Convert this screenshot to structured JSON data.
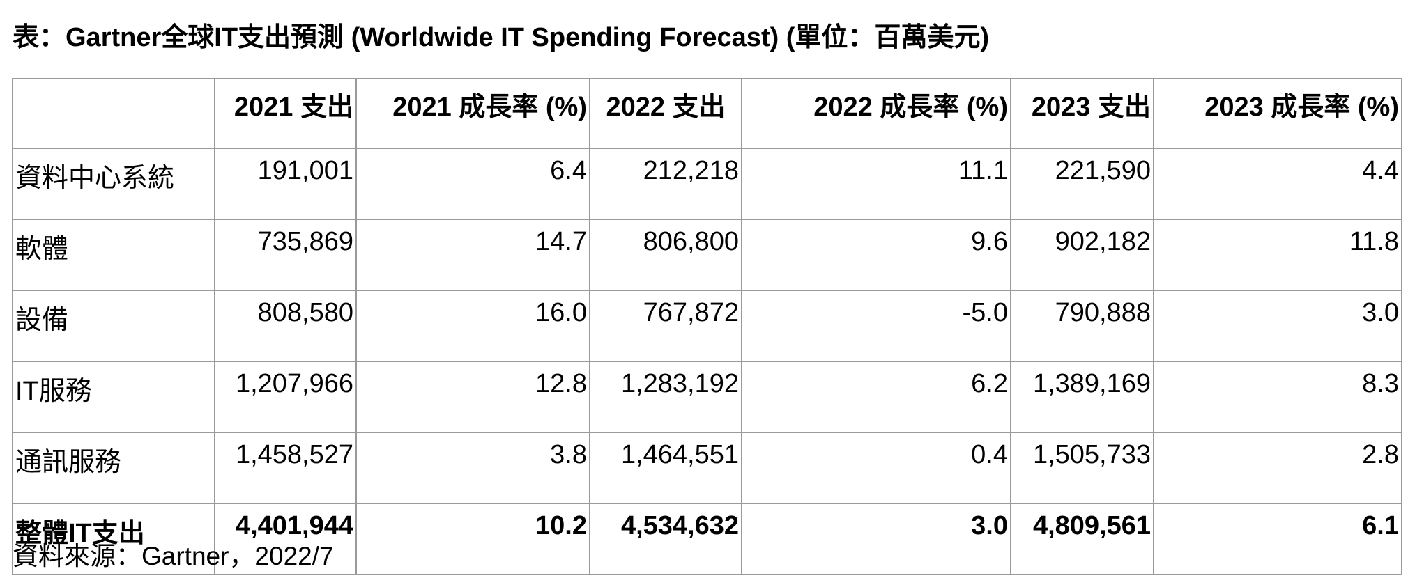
{
  "title": "表：Gartner全球IT支出預測 (Worldwide IT Spending Forecast) (單位：百萬美元)",
  "table": {
    "headers": [
      "",
      "2021 支出",
      "2021 成長率 (%)",
      "2022  支出",
      "2022 成長率 (%)",
      "2023 支出",
      "2023 成長率 (%)"
    ],
    "rows": [
      [
        "資料中心系統",
        "191,001",
        "6.4",
        "212,218",
        "11.1",
        "221,590",
        "4.4"
      ],
      [
        "軟體",
        "735,869",
        "14.7",
        "806,800",
        "9.6",
        "902,182",
        "11.8"
      ],
      [
        "設備",
        "808,580",
        "16.0",
        "767,872",
        "-5.0",
        "790,888",
        "3.0"
      ],
      [
        "IT服務",
        "1,207,966",
        "12.8",
        "1,283,192",
        "6.2",
        "1,389,169",
        "8.3"
      ],
      [
        "通訊服務",
        "1,458,527",
        "3.8",
        "1,464,551",
        "0.4",
        "1,505,733",
        "2.8"
      ],
      [
        "整體IT支出",
        "4,401,944",
        "10.2",
        "4,534,632",
        "3.0",
        "4,809,561",
        "6.1"
      ]
    ]
  },
  "source": "資料來源：Gartner，2022/7"
}
